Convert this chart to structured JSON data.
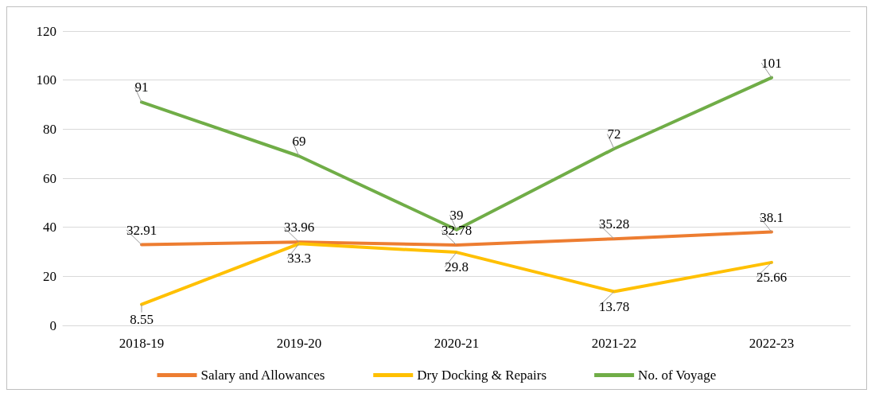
{
  "chart_data": {
    "type": "line",
    "categories": [
      "2018-19",
      "2019-20",
      "2020-21",
      "2021-22",
      "2022-23"
    ],
    "series": [
      {
        "name": "Salary and Allowances",
        "color": "#ed7d31",
        "values": [
          32.91,
          33.96,
          32.78,
          35.28,
          38.1
        ]
      },
      {
        "name": "Dry Docking & Repairs",
        "color": "#ffc000",
        "values": [
          8.55,
          33.3,
          29.8,
          13.78,
          25.66
        ]
      },
      {
        "name": "No. of Voyage",
        "color": "#70ad47",
        "values": [
          91,
          69,
          39,
          72,
          101
        ]
      }
    ],
    "ylim": [
      0,
      120
    ],
    "yticks": [
      0,
      20,
      40,
      60,
      80,
      100,
      120
    ],
    "grid": "y",
    "legend": "bottom",
    "marker": "none",
    "line_style": "solid",
    "data_labels": true
  }
}
